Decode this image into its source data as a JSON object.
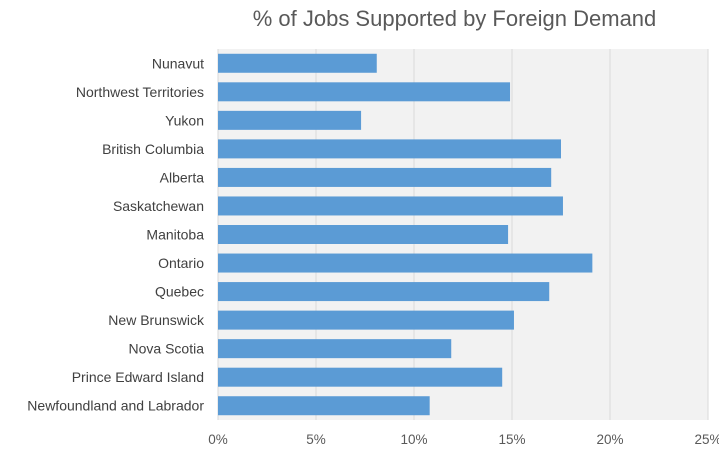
{
  "chart_data": {
    "type": "bar",
    "orientation": "horizontal",
    "title": "% of Jobs Supported by Foreign Demand",
    "categories": [
      "Nunavut",
      "Northwest Territories",
      "Yukon",
      "British Columbia",
      "Alberta",
      "Saskatchewan",
      "Manitoba",
      "Ontario",
      "Quebec",
      "New Brunswick",
      "Nova Scotia",
      "Prince Edward Island",
      "Newfoundland and Labrador"
    ],
    "values": [
      8.1,
      14.9,
      7.3,
      17.5,
      17.0,
      17.6,
      14.8,
      19.1,
      16.9,
      15.1,
      11.9,
      14.5,
      10.8
    ],
    "x_ticks": [
      "0%",
      "5%",
      "10%",
      "15%",
      "20%",
      "25%"
    ],
    "xlim": [
      0,
      25
    ],
    "grid": "vertical",
    "colors": {
      "bar": "#5b9bd5",
      "grid": "#d9d9d9",
      "plot_bg": "#f2f2f2"
    }
  }
}
